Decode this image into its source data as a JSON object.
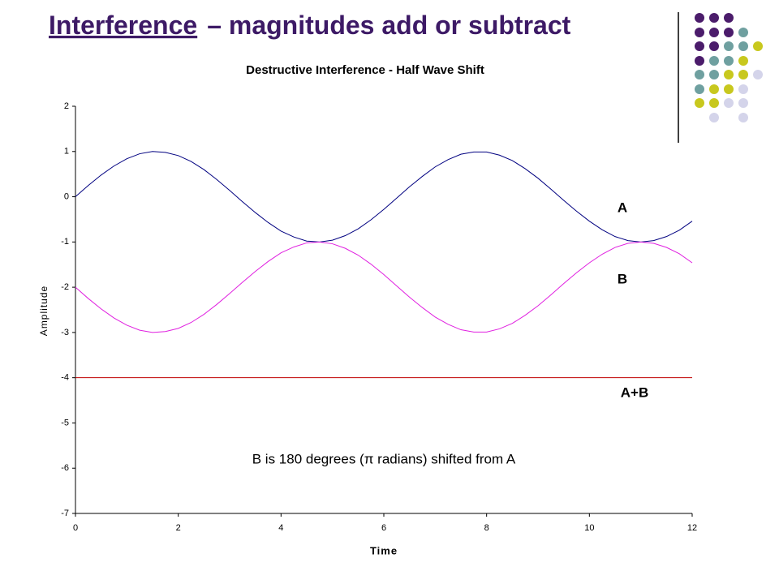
{
  "slide_title": {
    "underlined": "Interference",
    "rest": "– magnitudes add or subtract"
  },
  "chart_data": {
    "type": "line",
    "title": "Destructive Interference - Half Wave Shift",
    "xlabel": "Time",
    "ylabel": "Amplitude",
    "annotation": "B is 180 degrees (π radians) shifted from A",
    "x": [
      0,
      0.25,
      0.5,
      0.75,
      1,
      1.25,
      1.5,
      1.75,
      2,
      2.25,
      2.5,
      2.75,
      3,
      3.25,
      3.5,
      3.75,
      4,
      4.25,
      4.5,
      4.75,
      5,
      5.25,
      5.5,
      5.75,
      6,
      6.25,
      6.5,
      6.75,
      7,
      7.25,
      7.5,
      7.75,
      8,
      8.25,
      8.5,
      8.75,
      9,
      9.25,
      9.5,
      9.75,
      10,
      10.25,
      10.5,
      10.75,
      11,
      11.25,
      11.5,
      11.75,
      12
    ],
    "series": [
      {
        "name": "A",
        "color": "#000080",
        "values": [
          0,
          0.25,
          0.48,
          0.68,
          0.84,
          0.95,
          1.0,
          0.98,
          0.91,
          0.78,
          0.6,
          0.38,
          0.14,
          -0.11,
          -0.35,
          -0.57,
          -0.76,
          -0.89,
          -0.98,
          -1.0,
          -0.96,
          -0.86,
          -0.71,
          -0.51,
          -0.28,
          -0.03,
          0.22,
          0.45,
          0.66,
          0.82,
          0.94,
          0.99,
          0.99,
          0.92,
          0.8,
          0.62,
          0.41,
          0.17,
          -0.08,
          -0.32,
          -0.54,
          -0.73,
          -0.88,
          -0.97,
          -1.0,
          -0.97,
          -0.88,
          -0.74,
          -0.54
        ]
      },
      {
        "name": "B",
        "color": "#e020e0",
        "values": [
          -2,
          -2.25,
          -2.48,
          -2.68,
          -2.84,
          -2.95,
          -3.0,
          -2.98,
          -2.91,
          -2.78,
          -2.6,
          -2.38,
          -2.14,
          -1.89,
          -1.65,
          -1.43,
          -1.24,
          -1.11,
          -1.02,
          -1.0,
          -1.04,
          -1.14,
          -1.29,
          -1.49,
          -1.72,
          -1.97,
          -2.22,
          -2.45,
          -2.66,
          -2.82,
          -2.94,
          -2.99,
          -2.99,
          -2.92,
          -2.8,
          -2.62,
          -2.41,
          -2.17,
          -1.92,
          -1.68,
          -1.46,
          -1.27,
          -1.12,
          -1.03,
          -1.0,
          -1.03,
          -1.12,
          -1.26,
          -1.46
        ]
      },
      {
        "name": "A+B",
        "color": "#c00000",
        "values": [
          -4,
          -4,
          -4,
          -4,
          -4,
          -4,
          -4,
          -4,
          -4,
          -4,
          -4,
          -4,
          -4,
          -4,
          -4,
          -4,
          -4,
          -4,
          -4,
          -4,
          -4,
          -4,
          -4,
          -4,
          -4,
          -4,
          -4,
          -4,
          -4,
          -4,
          -4,
          -4,
          -4,
          -4,
          -4,
          -4,
          -4,
          -4,
          -4,
          -4,
          -4,
          -4,
          -4,
          -4,
          -4,
          -4,
          -4,
          -4,
          -4
        ]
      }
    ],
    "xlim": [
      0,
      12
    ],
    "xticks": [
      0,
      2,
      4,
      6,
      8,
      10,
      12
    ],
    "ylim": [
      -7,
      2
    ],
    "yticks": [
      -7,
      -6,
      -5,
      -4,
      -3,
      -2,
      -1,
      0,
      1,
      2
    ]
  }
}
